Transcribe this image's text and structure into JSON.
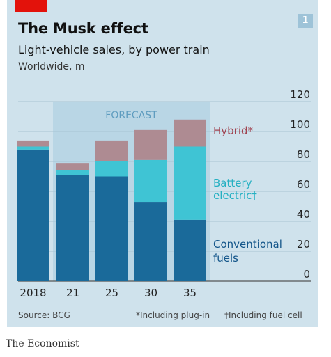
{
  "header": {
    "title": "The Musk effect",
    "subtitle": "Light-vehicle sales, by power train",
    "region": "Worldwide, m",
    "chart_number": "1"
  },
  "footer": {
    "source": "Source: BCG",
    "note_hybrid": "*Including plug-in",
    "note_battery": "†Including fuel cell",
    "publisher": "The Economist"
  },
  "colors": {
    "conventional": "#1a6a9a",
    "battery": "#3fc4d4",
    "hybrid": "#ae8b92",
    "grid": "#a8c4d2",
    "forecast_fill": "#b9d6e5",
    "hybrid_label": "#a0424f",
    "battery_label": "#25b0c2",
    "conventional_label": "#14568a"
  },
  "chart_data": {
    "type": "bar",
    "stacked": true,
    "categories": [
      "2018",
      "21",
      "25",
      "30",
      "35"
    ],
    "series": [
      {
        "name": "Conventional fuels",
        "values": [
          88,
          71,
          70,
          53,
          41
        ]
      },
      {
        "name": "Battery electric†",
        "values": [
          2,
          3,
          10,
          28,
          49
        ]
      },
      {
        "name": "Hybrid*",
        "values": [
          4,
          5,
          14,
          20,
          18
        ]
      }
    ],
    "ylim": [
      0,
      120
    ],
    "yticks": [
      0,
      20,
      40,
      60,
      80,
      100,
      120
    ],
    "forecast_label": "FORECAST",
    "forecast_categories": [
      "21",
      "25",
      "30",
      "35"
    ],
    "ylabel": "",
    "xlabel": ""
  }
}
